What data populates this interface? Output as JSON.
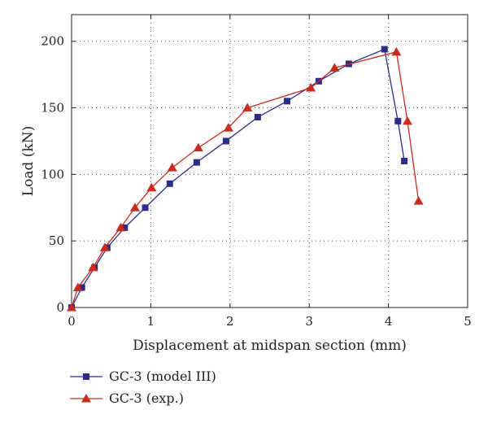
{
  "chart_data": {
    "type": "line",
    "xlabel": "Displacement at midspan section (mm)",
    "ylabel": "Load (kN)",
    "xlim": [
      0,
      5
    ],
    "ylim": [
      0,
      220
    ],
    "xticks": [
      0,
      1,
      2,
      3,
      4,
      5
    ],
    "yticks": [
      0,
      50,
      100,
      150,
      200
    ],
    "grid": true,
    "legend": "bottom-left, below plot",
    "series": [
      {
        "name": "GC-3 (model III)",
        "color": "#2b2b8c",
        "marker": "square",
        "x": [
          0,
          0.13,
          0.29,
          0.45,
          0.67,
          0.93,
          1.24,
          1.58,
          1.95,
          2.35,
          2.72,
          3.12,
          3.5,
          3.95,
          4.12,
          4.2
        ],
        "y": [
          0,
          15,
          30,
          45,
          60,
          75,
          93,
          109,
          125,
          143,
          155,
          170,
          183,
          194,
          140,
          110
        ]
      },
      {
        "name": "GC-3 (exp.)",
        "color": "#cc2a1a",
        "marker": "triangle",
        "x": [
          0,
          0.08,
          0.27,
          0.42,
          0.62,
          0.8,
          1.01,
          1.27,
          1.6,
          1.98,
          2.22,
          3.02,
          3.32,
          4.1,
          4.24,
          4.38
        ],
        "y": [
          0,
          15,
          30,
          45,
          60,
          75,
          90,
          105,
          120,
          135,
          150,
          165,
          180,
          192,
          140,
          80
        ]
      }
    ]
  }
}
